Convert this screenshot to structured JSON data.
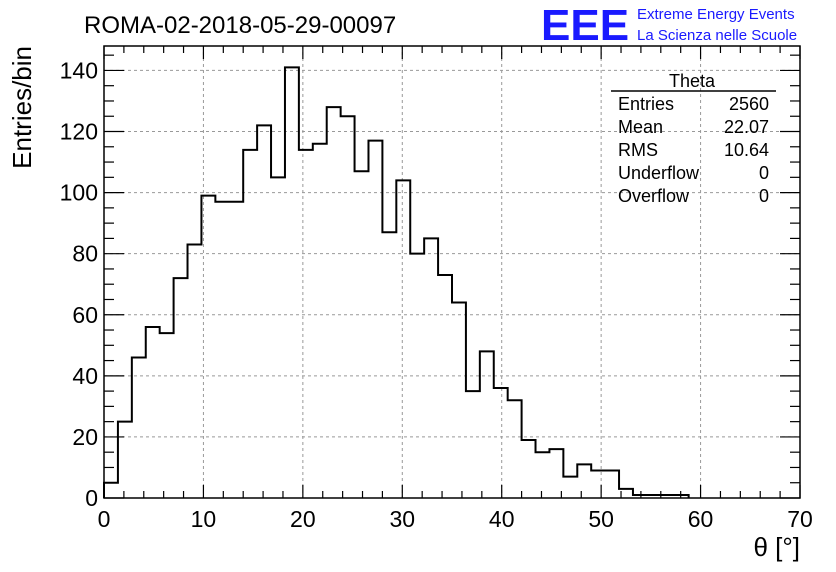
{
  "header": {
    "run_title": "ROMA-02-2018-05-29-00097",
    "logo_text": "EEE",
    "logo_line1": "Extreme Energy Events",
    "logo_line2": "La Scienza nelle Scuole"
  },
  "stats_box": {
    "title": "Theta",
    "rows": [
      {
        "label": "Entries",
        "value": "2560"
      },
      {
        "label": "Mean",
        "value": "22.07"
      },
      {
        "label": "RMS",
        "value": "10.64"
      },
      {
        "label": "Underflow",
        "value": "0"
      },
      {
        "label": "Overflow",
        "value": "0"
      }
    ]
  },
  "colors": {
    "logo": "#1a1aff",
    "histogram": "#000000",
    "grid": "#999999"
  },
  "chart_data": {
    "type": "bar",
    "style": "step-histogram",
    "xlabel": "θ [°]",
    "ylabel": "Entries/bin",
    "xlim": [
      0,
      70
    ],
    "ylim": [
      0,
      148
    ],
    "grid": true,
    "x_ticks": [
      0,
      10,
      20,
      30,
      40,
      50,
      60,
      70
    ],
    "y_ticks": [
      0,
      20,
      40,
      60,
      80,
      100,
      120,
      140
    ],
    "bin_width": 1.4,
    "bin_edges_start": 0,
    "values": [
      5,
      25,
      46,
      56,
      54,
      72,
      83,
      99,
      97,
      97,
      114,
      122,
      105,
      141,
      114,
      116,
      128,
      125,
      107,
      117,
      87,
      104,
      80,
      85,
      73,
      64,
      35,
      48,
      36,
      32,
      19,
      15,
      16,
      7,
      11,
      9,
      9,
      3,
      1,
      1,
      1,
      1,
      0,
      0,
      0,
      0,
      0,
      0,
      0,
      0
    ]
  }
}
